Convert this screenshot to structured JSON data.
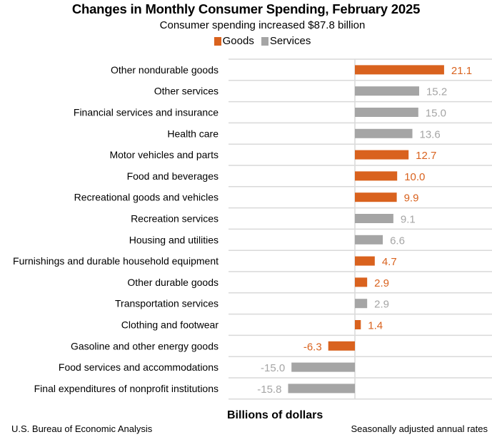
{
  "chart_data": {
    "type": "bar",
    "orientation": "horizontal",
    "title": "Changes in Monthly Consumer Spending, February 2025",
    "subtitle": "Consumer spending increased $87.8 billion",
    "xlabel": "Billions of dollars",
    "ylabel": "",
    "xlim": [
      -17,
      31
    ],
    "grid": true,
    "legend": {
      "placement": "top-center",
      "entries": [
        {
          "name": "Goods",
          "color": "#D9621E"
        },
        {
          "name": "Services",
          "color": "#A5A5A5"
        }
      ]
    },
    "categories": [
      "Other nondurable goods",
      "Other services",
      "Financial services and insurance",
      "Health care",
      "Motor vehicles and parts",
      "Food and beverages",
      "Recreational goods and vehicles",
      "Recreation services",
      "Housing and utilities",
      "Furnishings and durable household equipment",
      "Other durable goods",
      "Transportation services",
      "Clothing and footwear",
      "Gasoline and other energy goods",
      "Food services and accommodations",
      "Final expenditures of nonprofit institutions"
    ],
    "values": [
      21.1,
      15.2,
      15.0,
      13.6,
      12.7,
      10.0,
      9.9,
      9.1,
      6.6,
      4.7,
      2.9,
      2.9,
      1.4,
      -6.3,
      -15.0,
      -15.8
    ],
    "value_labels": [
      "21.1",
      "15.2",
      "15.0",
      "13.6",
      "12.7",
      "10.0",
      "9.9",
      "9.1",
      "6.6",
      "4.7",
      "2.9",
      "2.9",
      "1.4",
      "-6.3",
      "-15.0",
      "-15.8"
    ],
    "series_membership": [
      "Goods",
      "Services",
      "Services",
      "Services",
      "Goods",
      "Goods",
      "Goods",
      "Services",
      "Services",
      "Goods",
      "Goods",
      "Services",
      "Goods",
      "Goods",
      "Services",
      "Services"
    ]
  },
  "footer": {
    "source": "U.S. Bureau of Economic Analysis",
    "note": "Seasonally adjusted annual rates"
  },
  "colors": {
    "goods": "#D9621E",
    "services": "#A5A5A5",
    "grid": "#D9D9D9"
  }
}
